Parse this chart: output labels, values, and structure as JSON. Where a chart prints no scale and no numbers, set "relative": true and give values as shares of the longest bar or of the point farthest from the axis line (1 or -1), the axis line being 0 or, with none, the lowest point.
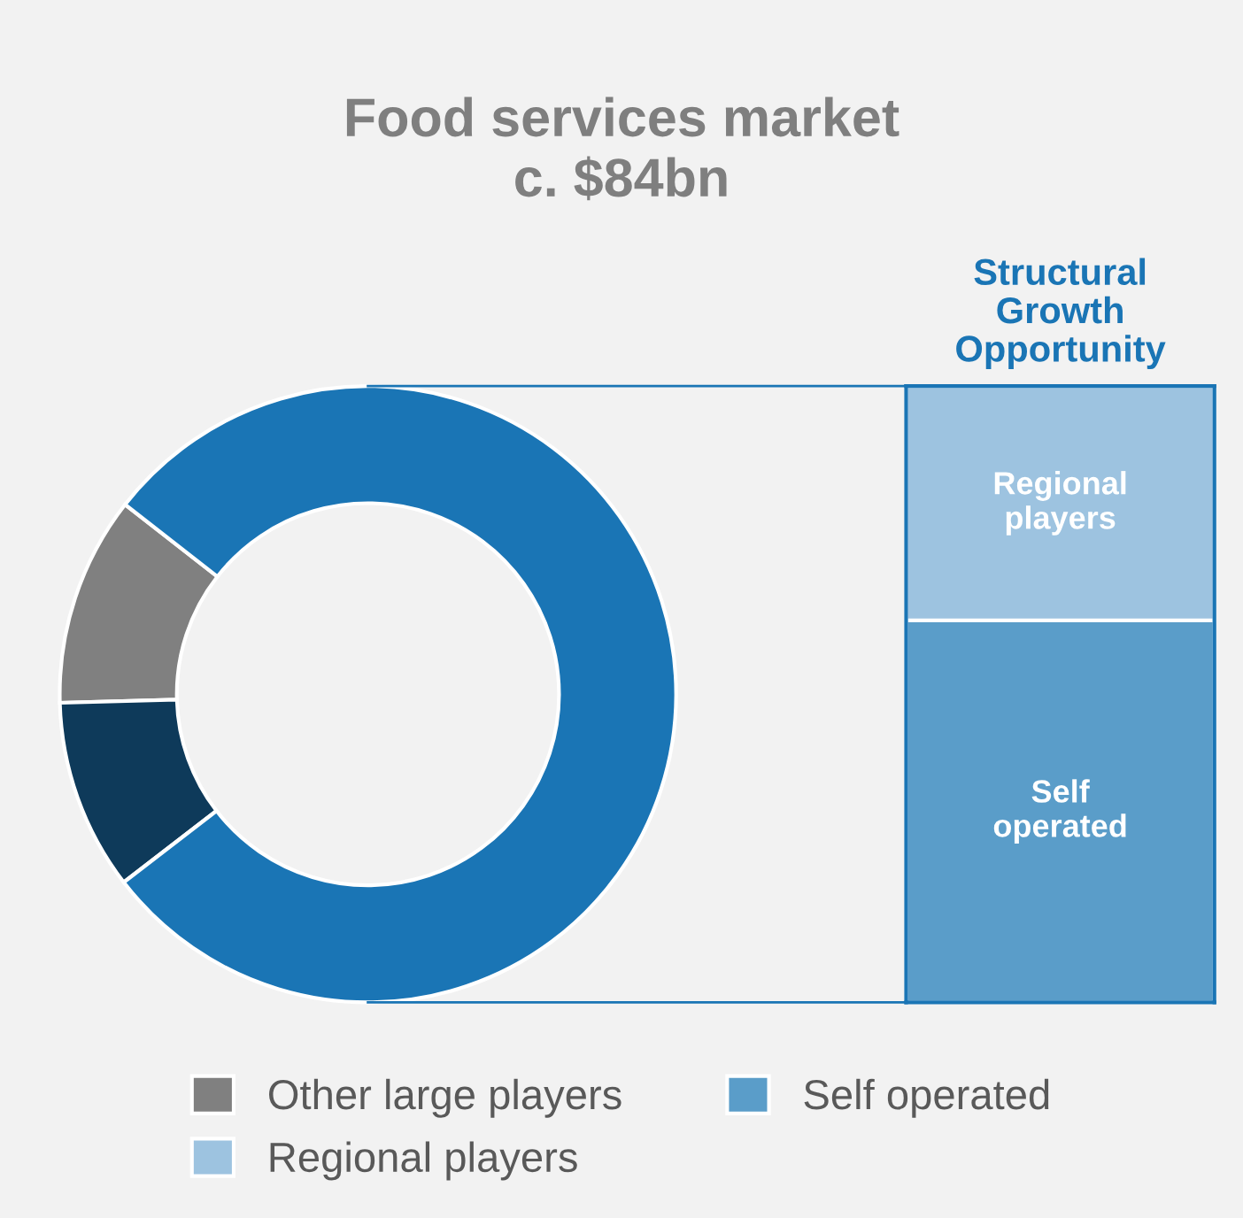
{
  "chart_data": [
    {
      "type": "donut",
      "title": "Food services market\nc. $84bn",
      "categories": [
        "Other large players",
        null,
        null
      ],
      "values": [
        11,
        10,
        79
      ],
      "colors": [
        "#808080",
        "#0e3a5a",
        "#1a75b5"
      ],
      "legend": "bottom"
    },
    {
      "type": "bar",
      "title": "Structural\nGrowth\nOpportunity",
      "relative": true,
      "stacked": true,
      "categories": [
        null
      ],
      "series": [
        {
          "name": "Self operated",
          "color": "#5a9dc9",
          "values": [
            0.62
          ]
        },
        {
          "name": "Regional players",
          "color": "#9dc3e0",
          "values": [
            0.38
          ]
        }
      ],
      "legend": "bottom"
    }
  ]
}
